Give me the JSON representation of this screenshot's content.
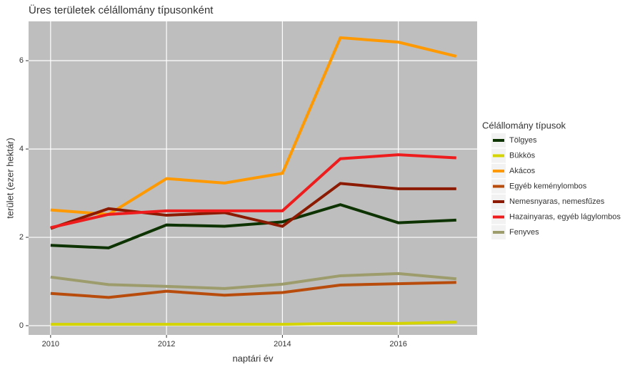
{
  "chart_data": {
    "type": "line",
    "title": "Üres területek célállomány típusonként",
    "x_label": "naptári év",
    "y_label": "terület (ezer hektár)",
    "legend_title": "Célállomány típusok",
    "x": [
      2010,
      2011,
      2012,
      2013,
      2014,
      2015,
      2016,
      2017
    ],
    "series": [
      {
        "name": "Tölgyes",
        "color": "#0d3300",
        "values": [
          1.82,
          1.76,
          2.28,
          2.25,
          2.35,
          2.74,
          2.33,
          2.39
        ]
      },
      {
        "name": "Bükkös",
        "color": "#d4d400",
        "values": [
          0.03,
          0.03,
          0.03,
          0.03,
          0.03,
          0.05,
          0.05,
          0.08
        ]
      },
      {
        "name": "Akácos",
        "color": "#ff9900",
        "values": [
          2.62,
          2.52,
          3.33,
          3.23,
          3.45,
          6.52,
          6.42,
          6.1
        ]
      },
      {
        "name": "Egyéb keménylombos",
        "color": "#b84c0d",
        "values": [
          0.73,
          0.64,
          0.78,
          0.69,
          0.75,
          0.92,
          0.95,
          0.98
        ]
      },
      {
        "name": "Nemesnyaras, nemesfűzes",
        "color": "#8b1a00",
        "values": [
          2.2,
          2.65,
          2.5,
          2.56,
          2.25,
          3.22,
          3.1,
          3.1
        ]
      },
      {
        "name": "Hazainyaras, egyéb lágylombos",
        "color": "#ee1c1c",
        "values": [
          2.22,
          2.52,
          2.6,
          2.6,
          2.6,
          3.78,
          3.87,
          3.8
        ]
      },
      {
        "name": "Fenyves",
        "color": "#9c9c6c",
        "values": [
          1.1,
          0.93,
          0.89,
          0.84,
          0.94,
          1.13,
          1.18,
          1.06
        ]
      }
    ],
    "xlim": [
      2009.62,
      2017.36
    ],
    "xticks": [
      2010,
      2012,
      2014,
      2016
    ],
    "ylim": [
      -0.21,
      6.89
    ],
    "yticks": [
      0,
      2,
      4,
      6
    ],
    "grid": true,
    "legend": "right"
  }
}
